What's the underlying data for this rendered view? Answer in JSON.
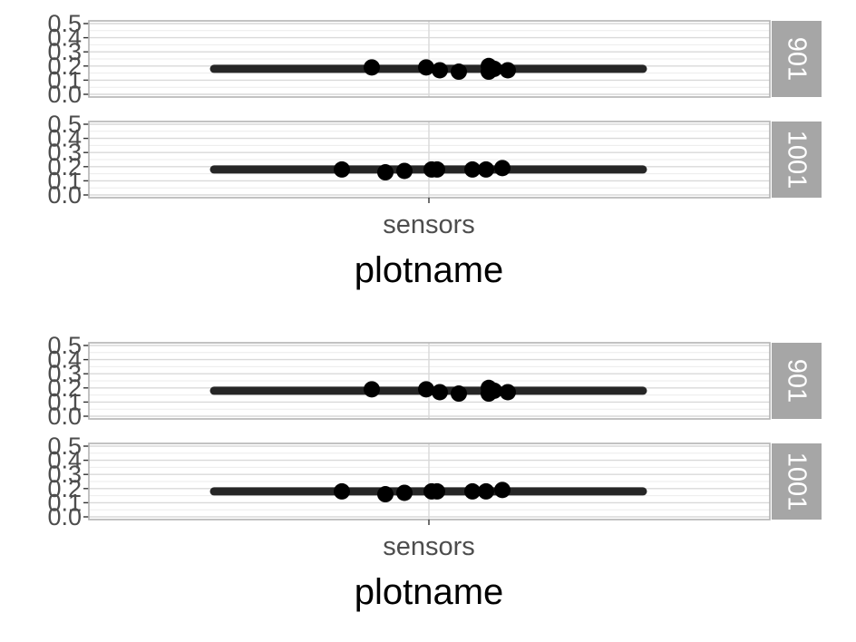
{
  "chart_data": [
    {
      "type": "scatter",
      "xlabel": "plotname",
      "ylabel": "",
      "categories": [
        "sensors"
      ],
      "ylim": [
        0.0,
        0.5
      ],
      "yticks": [
        "0.0",
        "0.1",
        "0.2",
        "0.3",
        "0.4",
        "0.5"
      ],
      "grid": true,
      "panels": [
        {
          "facet": "901",
          "mean_line": 0.18,
          "points": [
            {
              "x": -0.21,
              "y": 0.19
            },
            {
              "x": -0.01,
              "y": 0.19
            },
            {
              "x": 0.04,
              "y": 0.17
            },
            {
              "x": 0.11,
              "y": 0.16
            },
            {
              "x": 0.22,
              "y": 0.2
            },
            {
              "x": 0.24,
              "y": 0.18
            },
            {
              "x": 0.22,
              "y": 0.16
            },
            {
              "x": 0.29,
              "y": 0.17
            }
          ]
        },
        {
          "facet": "1001",
          "mean_line": 0.18,
          "points": [
            {
              "x": -0.32,
              "y": 0.18
            },
            {
              "x": -0.16,
              "y": 0.16
            },
            {
              "x": -0.09,
              "y": 0.17
            },
            {
              "x": 0.01,
              "y": 0.18
            },
            {
              "x": 0.03,
              "y": 0.18
            },
            {
              "x": 0.16,
              "y": 0.18
            },
            {
              "x": 0.21,
              "y": 0.18
            },
            {
              "x": 0.27,
              "y": 0.19
            }
          ]
        }
      ]
    },
    {
      "type": "scatter",
      "xlabel": "plotname",
      "ylabel": "",
      "categories": [
        "sensors"
      ],
      "ylim": [
        0.0,
        0.5
      ],
      "yticks": [
        "0.0",
        "0.1",
        "0.2",
        "0.3",
        "0.4",
        "0.5"
      ],
      "grid": true,
      "panels": [
        {
          "facet": "901",
          "mean_line": 0.18,
          "points": [
            {
              "x": -0.21,
              "y": 0.19
            },
            {
              "x": -0.01,
              "y": 0.19
            },
            {
              "x": 0.04,
              "y": 0.17
            },
            {
              "x": 0.11,
              "y": 0.16
            },
            {
              "x": 0.22,
              "y": 0.2
            },
            {
              "x": 0.24,
              "y": 0.18
            },
            {
              "x": 0.22,
              "y": 0.16
            },
            {
              "x": 0.29,
              "y": 0.17
            }
          ]
        },
        {
          "facet": "1001",
          "mean_line": 0.18,
          "points": [
            {
              "x": -0.32,
              "y": 0.18
            },
            {
              "x": -0.16,
              "y": 0.16
            },
            {
              "x": -0.09,
              "y": 0.17
            },
            {
              "x": 0.01,
              "y": 0.18
            },
            {
              "x": 0.03,
              "y": 0.18
            },
            {
              "x": 0.16,
              "y": 0.18
            },
            {
              "x": 0.21,
              "y": 0.18
            },
            {
              "x": 0.27,
              "y": 0.19
            }
          ]
        }
      ]
    }
  ]
}
